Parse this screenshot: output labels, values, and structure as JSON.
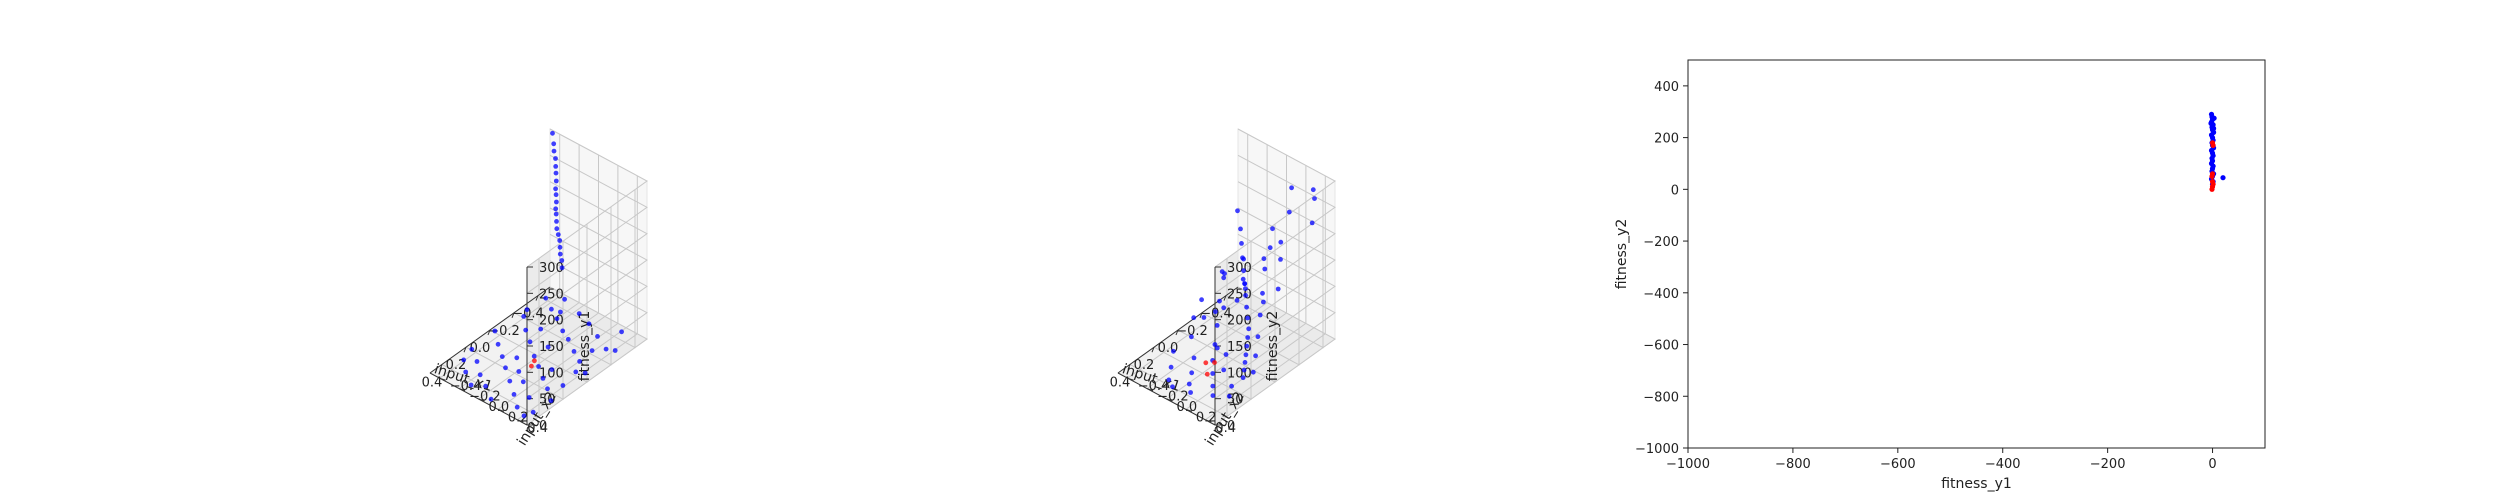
{
  "chart_data": [
    {
      "type": "scatter",
      "projection": "3d",
      "xlabel": "input_x1",
      "ylabel": "input_x2",
      "zlabel": "fitness_y1",
      "x_ticks": [
        "−0.4",
        "−0.2",
        "0.0",
        "0.2",
        "0.4"
      ],
      "y_ticks": [
        "−0.4",
        "−0.2",
        "0.0",
        "0.2",
        "0.4"
      ],
      "z_ticks": [
        "0",
        "50",
        "100",
        "150",
        "200",
        "250",
        "300"
      ],
      "xlim": [
        -0.5,
        0.5
      ],
      "ylim": [
        -0.5,
        0.5
      ],
      "zlim": [
        0,
        300
      ],
      "grid": true,
      "colors": {
        "main": "#0000ff",
        "highlight": "#ff0000"
      },
      "series": [
        {
          "color": "#0000ff",
          "points": [
            [
              -0.48,
              -0.45,
              300
            ],
            [
              -0.45,
              -0.4,
              290
            ],
            [
              -0.42,
              -0.36,
              285
            ],
            [
              -0.4,
              -0.32,
              278
            ],
            [
              -0.37,
              -0.28,
              272
            ],
            [
              -0.34,
              -0.24,
              268
            ],
            [
              -0.31,
              -0.2,
              262
            ],
            [
              -0.28,
              -0.17,
              255
            ],
            [
              -0.26,
              -0.14,
              250
            ],
            [
              -0.23,
              -0.1,
              245
            ],
            [
              -0.2,
              -0.07,
              240
            ],
            [
              -0.18,
              -0.04,
              236
            ],
            [
              -0.15,
              0.0,
              231
            ],
            [
              -0.12,
              0.04,
              226
            ],
            [
              -0.1,
              0.08,
              222
            ],
            [
              -0.08,
              0.12,
              218
            ],
            [
              -0.05,
              0.16,
              214
            ],
            [
              -0.02,
              0.2,
              210
            ],
            [
              0.0,
              0.24,
              205
            ],
            [
              0.03,
              0.28,
              200
            ],
            [
              -0.4,
              -0.42,
              3
            ],
            [
              -0.35,
              -0.3,
              2
            ],
            [
              -0.3,
              -0.18,
              4
            ],
            [
              -0.25,
              -0.06,
              1
            ],
            [
              -0.2,
              0.06,
              5
            ],
            [
              -0.15,
              0.18,
              2
            ],
            [
              -0.1,
              0.3,
              3
            ],
            [
              -0.05,
              0.42,
              1
            ],
            [
              -0.42,
              -0.1,
              2
            ],
            [
              -0.38,
              0.05,
              4
            ],
            [
              -0.33,
              0.2,
              3
            ],
            [
              -0.28,
              0.35,
              2
            ],
            [
              -0.2,
              -0.4,
              3
            ],
            [
              -0.12,
              -0.28,
              2
            ],
            [
              -0.05,
              -0.15,
              4
            ],
            [
              0.02,
              -0.02,
              1
            ],
            [
              0.08,
              0.1,
              3
            ],
            [
              0.14,
              0.22,
              2
            ],
            [
              0.2,
              0.34,
              4
            ],
            [
              0.26,
              0.45,
              2
            ],
            [
              0.0,
              -0.45,
              3
            ],
            [
              0.07,
              -0.33,
              1
            ],
            [
              0.14,
              -0.2,
              2
            ],
            [
              0.21,
              -0.08,
              4
            ],
            [
              0.28,
              0.05,
              3
            ],
            [
              0.35,
              0.18,
              2
            ],
            [
              0.42,
              0.3,
              1
            ],
            [
              0.46,
              0.42,
              3
            ],
            [
              0.2,
              -0.44,
              2
            ],
            [
              0.27,
              -0.3,
              4
            ],
            [
              0.34,
              -0.18,
              2
            ],
            [
              0.4,
              -0.05,
              3
            ],
            [
              0.46,
              0.08,
              1
            ],
            [
              -0.45,
              0.3,
              2
            ],
            [
              -0.3,
              0.42,
              3
            ],
            [
              -0.18,
              -0.2,
              2
            ],
            [
              -0.08,
              0.0,
              4
            ],
            [
              0.05,
              0.2,
              2
            ],
            [
              0.12,
              0.4,
              3
            ],
            [
              0.3,
              -0.4,
              2
            ],
            [
              0.38,
              -0.28,
              4
            ],
            [
              0.44,
              -0.15,
              2
            ],
            [
              -0.36,
              -0.22,
              3
            ],
            [
              -0.22,
              0.28,
              2
            ],
            [
              0.1,
              -0.1,
              3
            ],
            [
              0.18,
              0.02,
              2
            ],
            [
              0.24,
              0.14,
              4
            ],
            [
              -0.02,
              0.36,
              2
            ],
            [
              0.32,
              0.3,
              3
            ],
            [
              0.4,
              0.44,
              2
            ],
            [
              -0.46,
              -0.3,
              3
            ],
            [
              -0.26,
              -0.44,
              2
            ]
          ]
        },
        {
          "color": "#ff0000",
          "points": [
            [
              0.05,
              0.02,
              1
            ],
            [
              0.1,
              0.05,
              2
            ]
          ]
        }
      ]
    },
    {
      "type": "scatter",
      "projection": "3d",
      "xlabel": "input_x1",
      "ylabel": "input_x2",
      "zlabel": "fitness_y2",
      "x_ticks": [
        "−0.4",
        "−0.2",
        "0.0",
        "0.2",
        "0.4"
      ],
      "y_ticks": [
        "−0.4",
        "−0.2",
        "0.0",
        "0.2",
        "0.4"
      ],
      "z_ticks": [
        "0",
        "50",
        "100",
        "150",
        "200",
        "250",
        "300"
      ],
      "xlim": [
        -0.5,
        0.5
      ],
      "ylim": [
        -0.5,
        0.5
      ],
      "zlim": [
        0,
        300
      ],
      "grid": true,
      "colors": {
        "main": "#0000ff",
        "highlight": "#ff0000"
      },
      "series": [
        {
          "color": "#0000ff",
          "points": [
            [
              -0.48,
              -0.48,
              150
            ],
            [
              -0.44,
              -0.4,
              130
            ],
            [
              -0.4,
              -0.34,
              115
            ],
            [
              -0.36,
              -0.28,
              100
            ],
            [
              -0.32,
              -0.22,
              88
            ],
            [
              -0.28,
              -0.16,
              76
            ],
            [
              -0.24,
              -0.1,
              66
            ],
            [
              -0.2,
              -0.04,
              56
            ],
            [
              -0.16,
              0.02,
              48
            ],
            [
              -0.12,
              0.08,
              40
            ],
            [
              -0.08,
              0.12,
              34
            ],
            [
              -0.04,
              0.16,
              28
            ],
            [
              0.0,
              0.2,
              22
            ],
            [
              0.04,
              0.24,
              18
            ],
            [
              0.08,
              0.28,
              14
            ],
            [
              0.12,
              0.32,
              10
            ],
            [
              -0.3,
              -0.4,
              60
            ],
            [
              -0.2,
              -0.32,
              40
            ],
            [
              -0.1,
              -0.22,
              20
            ],
            [
              0.0,
              -0.12,
              10
            ],
            [
              0.1,
              -0.02,
              6
            ],
            [
              0.18,
              0.08,
              4
            ],
            [
              0.26,
              0.18,
              3
            ],
            [
              0.34,
              0.28,
              8
            ],
            [
              -0.4,
              -0.1,
              90
            ],
            [
              -0.3,
              0.0,
              70
            ],
            [
              -0.2,
              0.1,
              55
            ],
            [
              -0.1,
              0.2,
              40
            ],
            [
              0.0,
              0.3,
              30
            ],
            [
              0.1,
              0.4,
              25
            ],
            [
              0.2,
              -0.3,
              12
            ],
            [
              0.3,
              -0.2,
              8
            ],
            [
              0.4,
              -0.1,
              10
            ],
            [
              0.45,
              0.0,
              15
            ],
            [
              -0.05,
              -0.4,
              25
            ],
            [
              0.05,
              -0.3,
              15
            ],
            [
              0.15,
              -0.15,
              6
            ],
            [
              0.25,
              -0.05,
              4
            ],
            [
              0.35,
              0.05,
              9
            ],
            [
              0.42,
              0.15,
              14
            ],
            [
              -0.15,
              -0.3,
              30
            ],
            [
              -0.25,
              -0.2,
              45
            ],
            [
              0.2,
              0.3,
              5
            ],
            [
              0.3,
              0.4,
              12
            ],
            [
              -0.35,
              0.1,
              80
            ],
            [
              -0.45,
              0.0,
              110
            ],
            [
              0.02,
              0.02,
              8
            ],
            [
              0.12,
              0.12,
              5
            ],
            [
              -0.3,
              0.3,
              300
            ],
            [
              -0.2,
              0.4,
              280
            ],
            [
              -0.1,
              0.35,
              260
            ],
            [
              0.0,
              0.45,
              250
            ],
            [
              0.1,
              0.3,
              230
            ],
            [
              0.2,
              0.42,
              220
            ],
            [
              0.3,
              0.35,
              240
            ],
            [
              0.4,
              0.45,
              270
            ],
            [
              -0.4,
              0.4,
              290
            ],
            [
              -0.25,
              0.25,
              200
            ],
            [
              -0.15,
              0.2,
              180
            ],
            [
              0.05,
              0.25,
              170
            ],
            [
              0.15,
              0.38,
              190
            ],
            [
              0.25,
              0.28,
              160
            ],
            [
              0.35,
              0.2,
              150
            ],
            [
              0.45,
              0.3,
              210
            ],
            [
              -0.45,
              0.35,
              260
            ],
            [
              -0.35,
              0.45,
              240
            ],
            [
              0.0,
              0.38,
              140
            ],
            [
              0.4,
              0.4,
              120
            ]
          ]
        },
        {
          "color": "#ff0000",
          "points": [
            [
              0.1,
              0.0,
              4
            ],
            [
              0.2,
              0.05,
              3
            ],
            [
              0.14,
              -0.04,
              6
            ]
          ]
        }
      ]
    },
    {
      "type": "scatter",
      "xlabel": "fitness_y1",
      "ylabel": "fitness_y2",
      "x_ticks": [
        "−1000",
        "−800",
        "−600",
        "−400",
        "−200",
        "0"
      ],
      "y_ticks": [
        "−1000",
        "−800",
        "−600",
        "−400",
        "−200",
        "0",
        "200",
        "400"
      ],
      "xlim": [
        -1000,
        100
      ],
      "ylim": [
        -1000,
        500
      ],
      "grid": false,
      "colors": {
        "main": "#0000ff",
        "highlight": "#ff0000"
      },
      "series": [
        {
          "color": "#0000ff",
          "points": [
            [
              -2,
              290
            ],
            [
              -1,
              280
            ],
            [
              0,
              270
            ],
            [
              -2,
              260
            ],
            [
              1,
              250
            ],
            [
              -1,
              240
            ],
            [
              0,
              230
            ],
            [
              2,
              220
            ],
            [
              -2,
              210
            ],
            [
              0,
              200
            ],
            [
              1,
              190
            ],
            [
              -1,
              180
            ],
            [
              0,
              170
            ],
            [
              2,
              160
            ],
            [
              -2,
              150
            ],
            [
              0,
              140
            ],
            [
              1,
              130
            ],
            [
              -1,
              120
            ],
            [
              0,
              110
            ],
            [
              -2,
              100
            ],
            [
              1,
              90
            ],
            [
              0,
              80
            ],
            [
              -1,
              70
            ],
            [
              2,
              60
            ],
            [
              0,
              50
            ],
            [
              -2,
              40
            ],
            [
              1,
              30
            ],
            [
              0,
              20
            ],
            [
              20,
              45
            ],
            [
              3,
              275
            ],
            [
              -3,
              255
            ],
            [
              2,
              235
            ]
          ]
        },
        {
          "color": "#ff0000",
          "points": [
            [
              0,
              180
            ],
            [
              1,
              170
            ],
            [
              0,
              60
            ],
            [
              -1,
              50
            ],
            [
              0,
              30
            ],
            [
              1,
              20
            ],
            [
              0,
              10
            ],
            [
              -1,
              0
            ]
          ]
        }
      ]
    }
  ]
}
